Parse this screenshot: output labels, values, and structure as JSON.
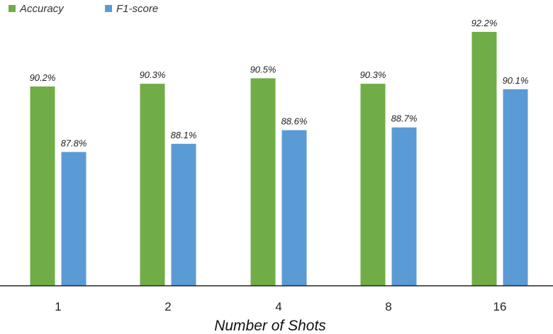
{
  "chart_data": {
    "type": "bar",
    "categories": [
      "1",
      "2",
      "4",
      "8",
      "16"
    ],
    "series": [
      {
        "name": "Accuracy",
        "color": "#70ad47",
        "values": [
          90.2,
          90.3,
          90.5,
          90.3,
          92.2
        ],
        "labels": [
          "90.2%",
          "90.3%",
          "90.5%",
          "90.3%",
          "92.2%"
        ]
      },
      {
        "name": "F1-score",
        "color": "#5b9bd5",
        "values": [
          87.8,
          88.1,
          88.6,
          88.7,
          90.1
        ],
        "labels": [
          "87.8%",
          "88.1%",
          "88.6%",
          "88.7%",
          "90.1%"
        ]
      }
    ],
    "xlabel": "Number of Shots",
    "ylabel": "",
    "ylim": [
      82.9,
      92.9
    ],
    "grid": false,
    "legend": "top-left"
  }
}
